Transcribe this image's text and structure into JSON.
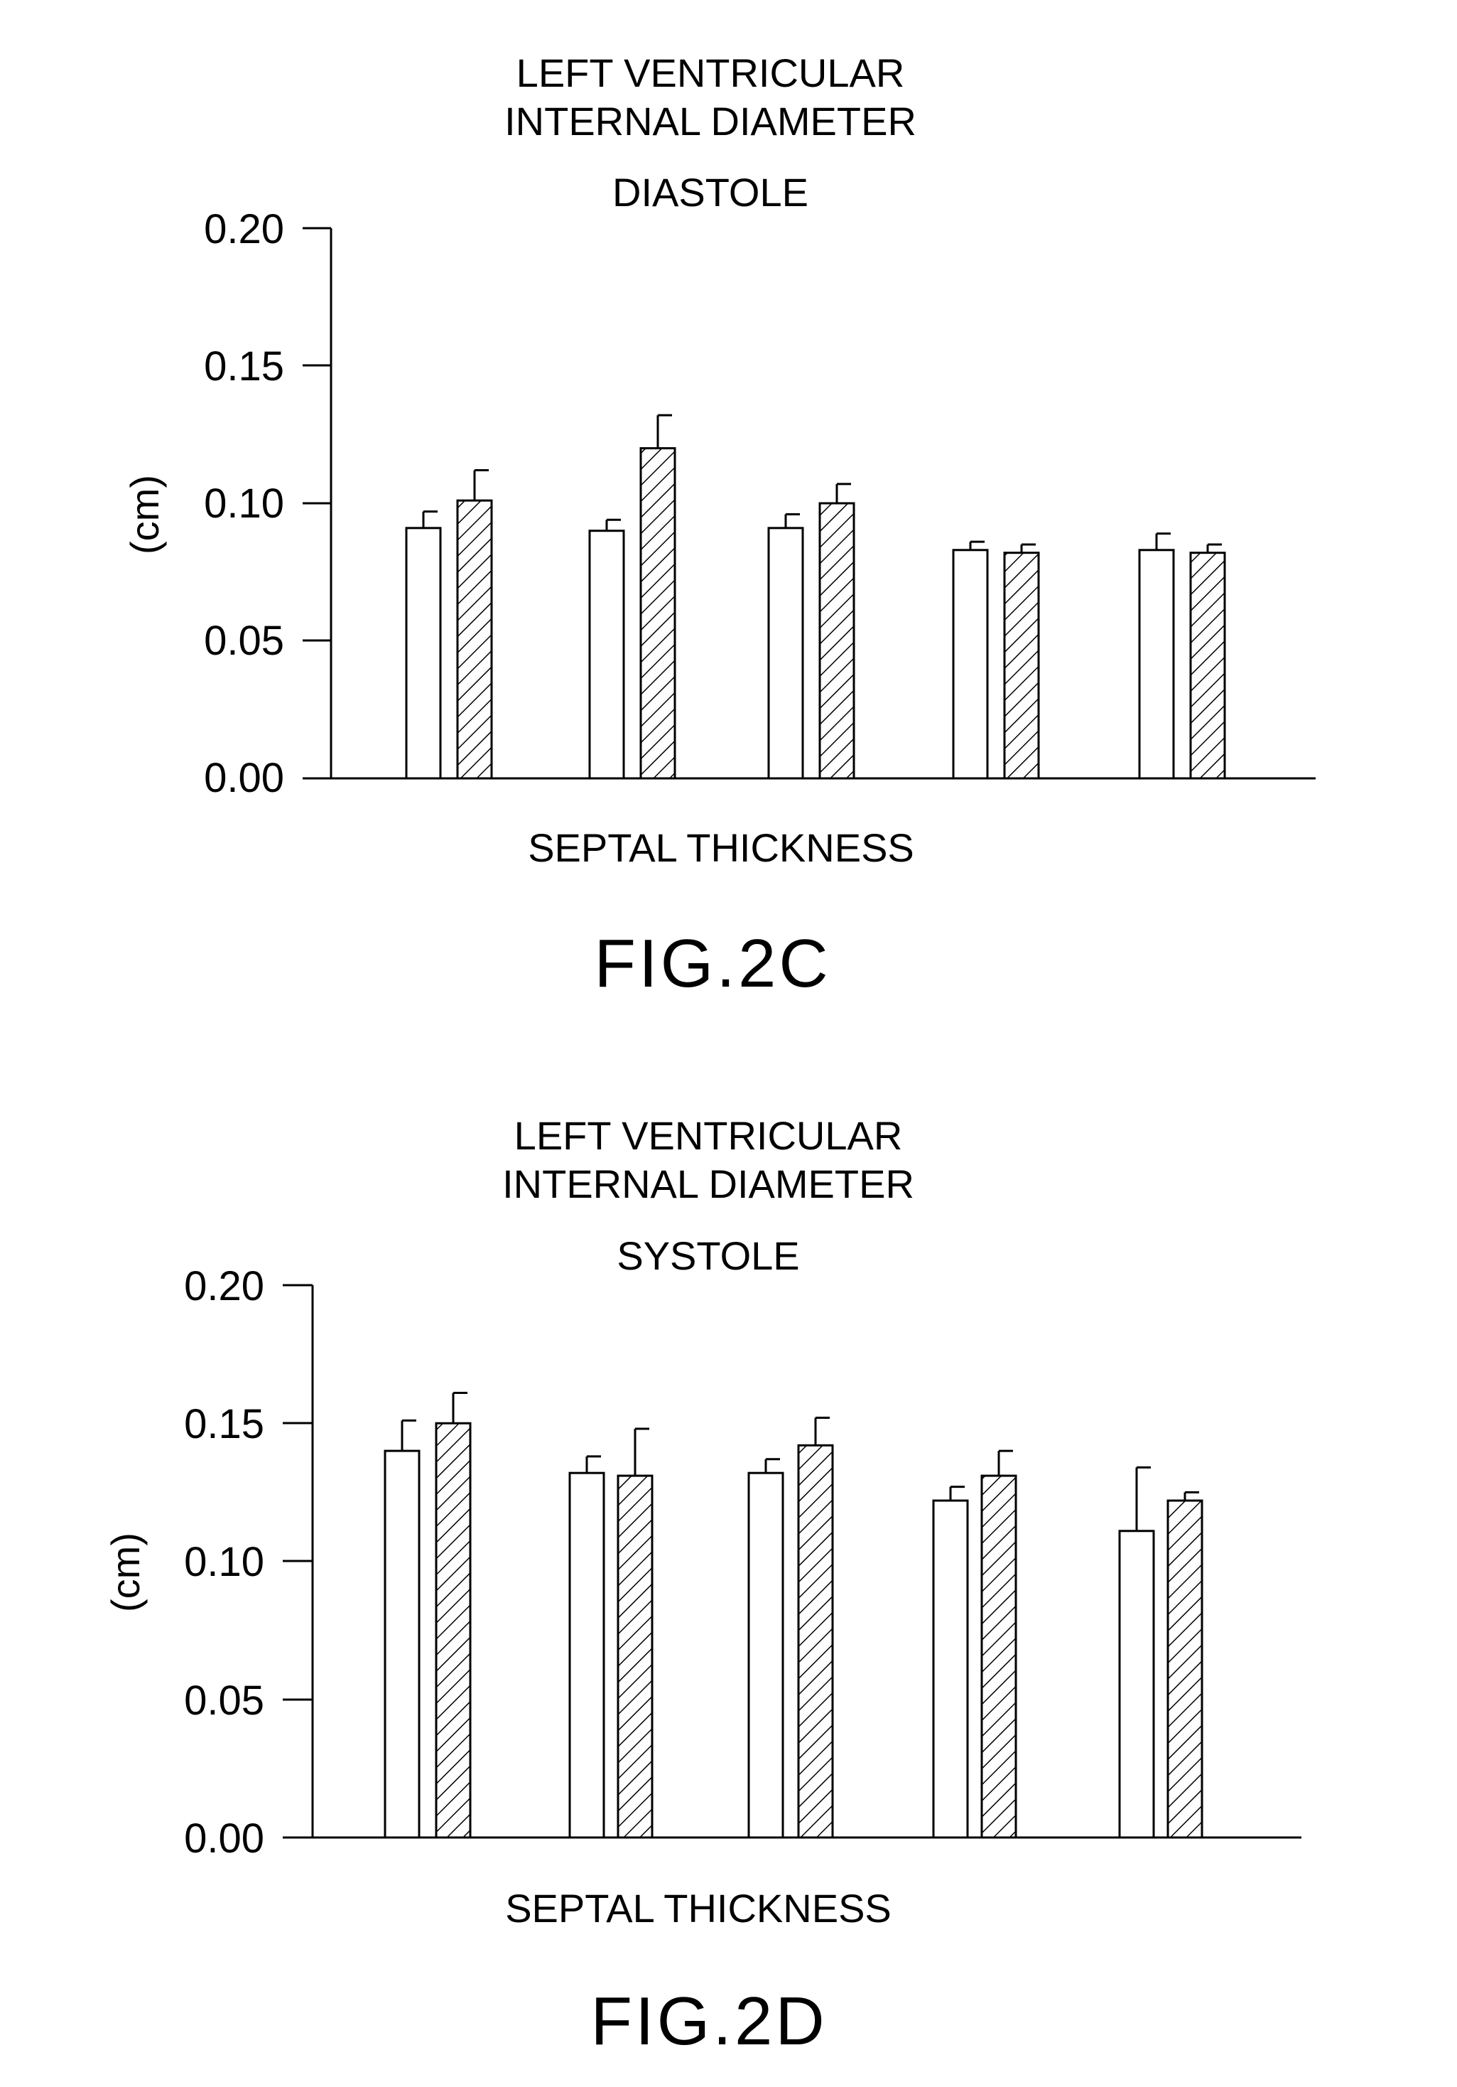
{
  "chart_data": [
    {
      "type": "bar",
      "title_lines": [
        "LEFT VENTRICULAR",
        "INTERNAL DIAMETER"
      ],
      "subtitle": "DIASTOLE",
      "xlabel": "SEPTAL THICKNESS",
      "ylabel": "(cm)",
      "ylim": [
        0,
        0.2
      ],
      "yticks": [
        "0.00",
        "0.05",
        "0.10",
        "0.15",
        "0.20"
      ],
      "figure_label": "FIG.2C",
      "series": [
        {
          "style": "open",
          "values": [
            0.091,
            0.09,
            0.091,
            0.083,
            0.083
          ],
          "errors": [
            0.006,
            0.004,
            0.005,
            0.003,
            0.006
          ]
        },
        {
          "style": "hatched",
          "values": [
            0.101,
            0.12,
            0.1,
            0.082,
            0.082
          ],
          "errors": [
            0.011,
            0.012,
            0.007,
            0.003,
            0.003
          ]
        }
      ],
      "grid": false
    },
    {
      "type": "bar",
      "title_lines": [
        "LEFT VENTRICULAR",
        "INTERNAL DIAMETER"
      ],
      "subtitle": "SYSTOLE",
      "xlabel": "SEPTAL THICKNESS",
      "ylabel": "(cm)",
      "ylim": [
        0,
        0.2
      ],
      "yticks": [
        "0.00",
        "0.05",
        "0.10",
        "0.15",
        "0.20"
      ],
      "figure_label": "FIG.2D",
      "series": [
        {
          "style": "open",
          "values": [
            0.14,
            0.132,
            0.132,
            0.122,
            0.111
          ],
          "errors": [
            0.011,
            0.006,
            0.005,
            0.005,
            0.023
          ]
        },
        {
          "style": "hatched",
          "values": [
            0.15,
            0.131,
            0.142,
            0.131,
            0.122
          ],
          "errors": [
            0.011,
            0.017,
            0.01,
            0.009,
            0.003
          ]
        }
      ],
      "grid": false
    }
  ]
}
